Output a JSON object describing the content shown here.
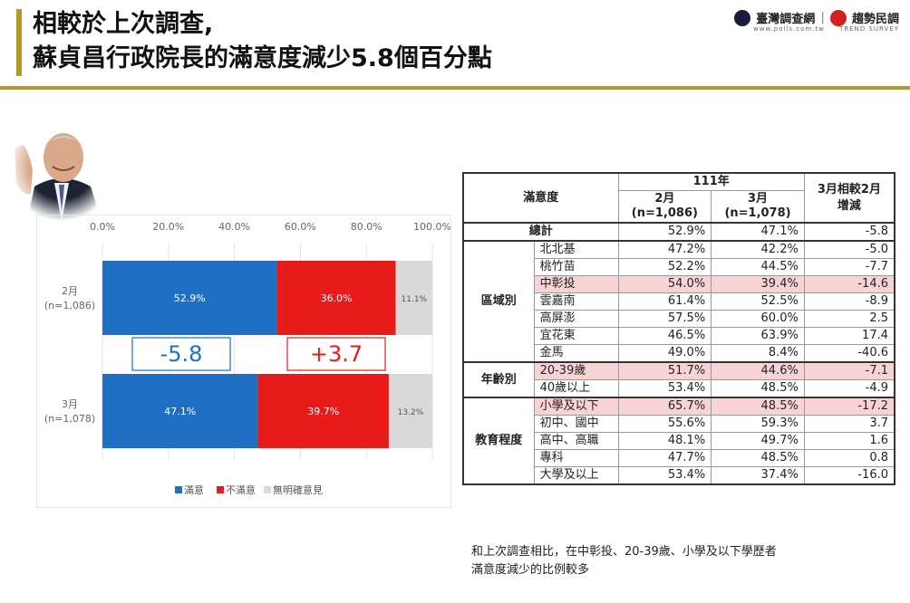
{
  "header": {
    "title_line1": "相較於上次調查,",
    "title_line2": "蘇貞昌行政院長的滿意度減少5.8個百分點",
    "logo1": "臺灣調查網",
    "logo1_sub": "www.polls.com.tw",
    "logo2": "趨勢民調",
    "logo2_sub": "TREND SURVEY"
  },
  "colors": {
    "satisfied": "#1f6fc5",
    "dissatisfied": "#e81b1b",
    "no_opinion": "#d9d9d9",
    "accent": "#b8972a",
    "highlight": "#f8d3d3"
  },
  "chart_data": {
    "type": "bar",
    "orientation": "horizontal-stacked",
    "categories": [
      "2月\n(n=1,086)",
      "3月\n(n=1,078)"
    ],
    "series": [
      {
        "name": "滿意",
        "values": [
          52.9,
          47.1
        ],
        "labels": [
          "52.9%",
          "47.1%"
        ]
      },
      {
        "name": "不滿意",
        "values": [
          36.0,
          39.7
        ],
        "labels": [
          "36.0%",
          "39.7%"
        ]
      },
      {
        "name": "無明確意見",
        "values": [
          11.1,
          13.2
        ],
        "labels": [
          "11.1%",
          "13.2%"
        ]
      }
    ],
    "xlim": [
      0,
      100
    ],
    "x_ticks": [
      "0.0%",
      "20.0%",
      "40.0%",
      "60.0%",
      "80.0%",
      "100.0%"
    ],
    "annotations": [
      "-5.8",
      "+3.7"
    ],
    "legend": "bottom"
  },
  "table": {
    "corner": "滿意度",
    "year_header": "111年",
    "col_feb": "2月",
    "col_feb_n": "(n=1,086)",
    "col_mar": "3月",
    "col_mar_n": "(n=1,078)",
    "col_change": "3月相較2月",
    "col_change2": "增減",
    "total": {
      "label": "總計",
      "feb": "52.9%",
      "mar": "47.1%",
      "change": "-5.8"
    },
    "groups": [
      {
        "name": "區域別",
        "rows": [
          {
            "label": "北北基",
            "feb": "47.2%",
            "mar": "42.2%",
            "change": "-5.0",
            "hl": false
          },
          {
            "label": "桃竹苗",
            "feb": "52.2%",
            "mar": "44.5%",
            "change": "-7.7",
            "hl": false
          },
          {
            "label": "中彰投",
            "feb": "54.0%",
            "mar": "39.4%",
            "change": "-14.6",
            "hl": true
          },
          {
            "label": "雲嘉南",
            "feb": "61.4%",
            "mar": "52.5%",
            "change": "-8.9",
            "hl": false
          },
          {
            "label": "高屏澎",
            "feb": "57.5%",
            "mar": "60.0%",
            "change": "2.5",
            "hl": false
          },
          {
            "label": "宜花東",
            "feb": "46.5%",
            "mar": "63.9%",
            "change": "17.4",
            "hl": false
          },
          {
            "label": "金馬",
            "feb": "49.0%",
            "mar": "8.4%",
            "change": "-40.6",
            "hl": false
          }
        ]
      },
      {
        "name": "年齡別",
        "rows": [
          {
            "label": "20-39歲",
            "feb": "51.7%",
            "mar": "44.6%",
            "change": "-7.1",
            "hl": true
          },
          {
            "label": "40歲以上",
            "feb": "53.4%",
            "mar": "48.5%",
            "change": "-4.9",
            "hl": false
          }
        ]
      },
      {
        "name": "教育程度",
        "rows": [
          {
            "label": "小學及以下",
            "feb": "65.7%",
            "mar": "48.5%",
            "change": "-17.2",
            "hl": true
          },
          {
            "label": "初中、國中",
            "feb": "55.6%",
            "mar": "59.3%",
            "change": "3.7",
            "hl": false
          },
          {
            "label": "高中、高職",
            "feb": "48.1%",
            "mar": "49.7%",
            "change": "1.6",
            "hl": false
          },
          {
            "label": "專科",
            "feb": "47.7%",
            "mar": "48.5%",
            "change": "0.8",
            "hl": false
          },
          {
            "label": "大學及以上",
            "feb": "53.4%",
            "mar": "37.4%",
            "change": "-16.0",
            "hl": false
          }
        ]
      }
    ]
  },
  "note": {
    "line1": "和上次調查相比，在中彰投、20-39歲、小學及以下學歷者",
    "line2": "滿意度減少的比例較多"
  }
}
